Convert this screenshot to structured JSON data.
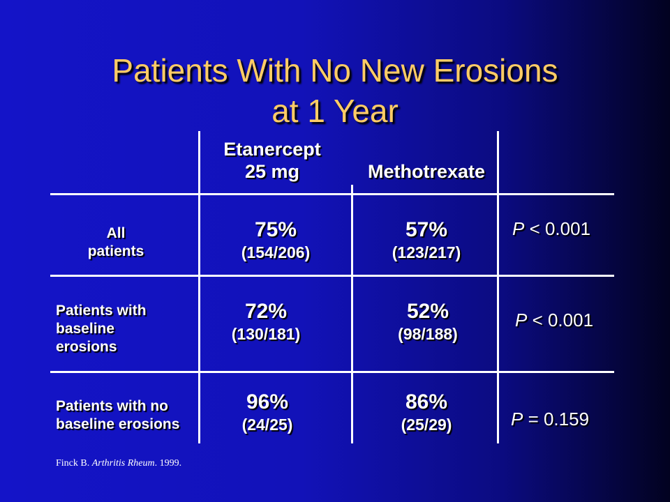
{
  "title": {
    "line1": "Patients With No New Erosions",
    "line2": "at 1 Year"
  },
  "columns": {
    "etanercept_line1": "Etanercept",
    "etanercept_line2": "25 mg",
    "methotrexate": "Methotrexate"
  },
  "rows": [
    {
      "label_lines": [
        "All",
        "patients"
      ],
      "etanercept_pct": "75%",
      "etanercept_frac": "(154/206)",
      "methotrexate_pct": "57%",
      "methotrexate_frac": "(123/217)",
      "p_symbol": "P",
      "p_rest": " < 0.001"
    },
    {
      "label_lines": [
        "Patients with",
        "baseline",
        "erosions"
      ],
      "etanercept_pct": "72%",
      "etanercept_frac": "(130/181)",
      "methotrexate_pct": "52%",
      "methotrexate_frac": "(98/188)",
      "p_symbol": "P",
      "p_rest": " < 0.001"
    },
    {
      "label_lines": [
        "Patients with no",
        "baseline erosions"
      ],
      "etanercept_pct": "96%",
      "etanercept_frac": "(24/25)",
      "methotrexate_pct": "86%",
      "methotrexate_frac": "(25/29)",
      "p_symbol": "P",
      "p_rest": " = 0.159"
    }
  ],
  "citation": {
    "author": "Finck B. ",
    "journal": "Arthritis Rheum",
    "year": ". 1999."
  }
}
